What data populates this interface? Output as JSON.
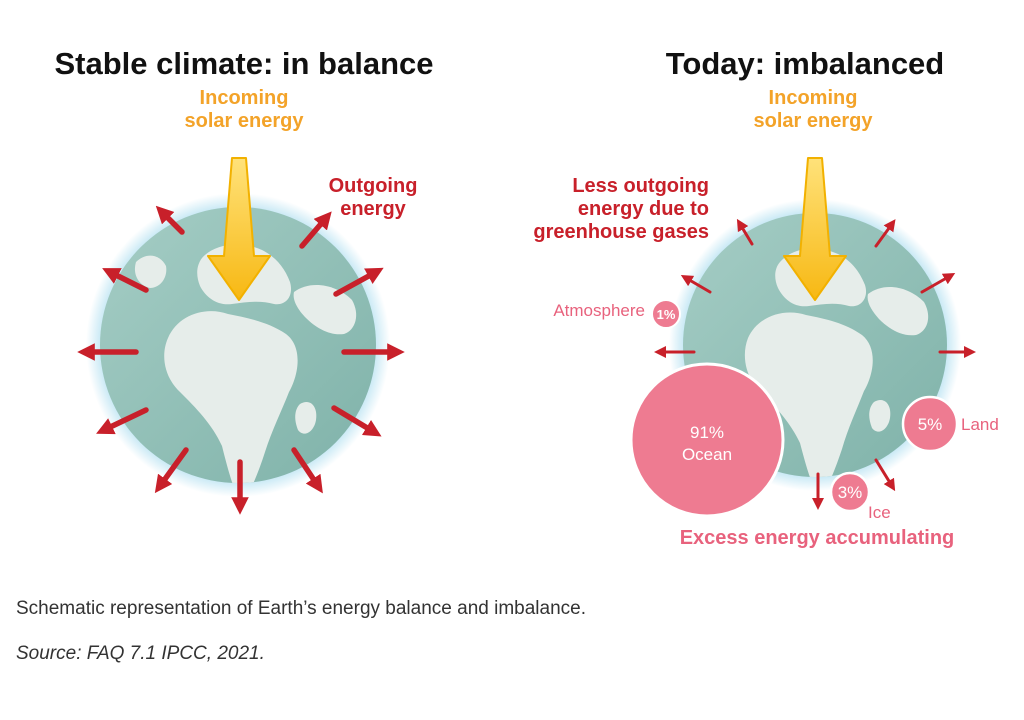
{
  "left_panel": {
    "title": "Stable climate: in balance",
    "incoming_line1": "Incoming",
    "incoming_line2": "solar energy",
    "outgoing_line1": "Outgoing",
    "outgoing_line2": "energy"
  },
  "right_panel": {
    "title": "Today: imbalanced",
    "incoming_line1": "Incoming",
    "incoming_line2": "solar energy",
    "less_line1": "Less outgoing",
    "less_line2": "energy due to",
    "less_line3": "greenhouse gases",
    "atmosphere_label": "Atmosphere",
    "atmosphere_value": "1%",
    "ocean_value": "91%",
    "ocean_label": "Ocean",
    "land_value": "5%",
    "land_label": "Land",
    "ice_value": "3%",
    "ice_label": "Ice",
    "excess_label": "Excess energy accumulating"
  },
  "caption": "Schematic representation of Earth’s energy balance and imbalance.",
  "source": "Source: FAQ 7.1 IPCC, 2021.",
  "colors": {
    "solar": "#f3a329",
    "outgoing": "#c8202a",
    "accumulation": "#e8627d",
    "ocean": "#8fbdb5",
    "land": "#e6edea"
  }
}
